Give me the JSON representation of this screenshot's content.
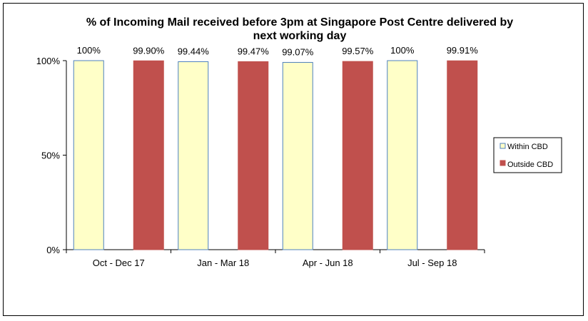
{
  "chart_data": {
    "type": "bar",
    "title_lines": [
      "% of Incoming Mail received before 3pm at Singapore Post Centre delivered by",
      "next working day"
    ],
    "categories": [
      "Oct - Dec 17",
      "Jan - Mar 18",
      "Apr - Jun 18",
      "Jul - Sep 18"
    ],
    "series": [
      {
        "name": "Within CBD",
        "values": [
          100,
          99.44,
          99.07,
          100
        ],
        "labels": [
          "100%",
          "99.44%",
          "99.07%",
          "100%"
        ],
        "fill": "#ffffc8",
        "stroke": "#4f81bd"
      },
      {
        "name": "Outside CBD",
        "values": [
          99.9,
          99.47,
          99.57,
          99.91
        ],
        "labels": [
          "99.90%",
          "99.47%",
          "99.57%",
          "99.91%"
        ],
        "fill": "#c0504d",
        "stroke": "#c0504d"
      }
    ],
    "y_ticks": [
      "100%",
      "50%",
      "0%"
    ],
    "y_tick_values": [
      100,
      50,
      0
    ],
    "ylim": [
      0,
      100
    ],
    "grid": false,
    "legend_position": "right"
  }
}
